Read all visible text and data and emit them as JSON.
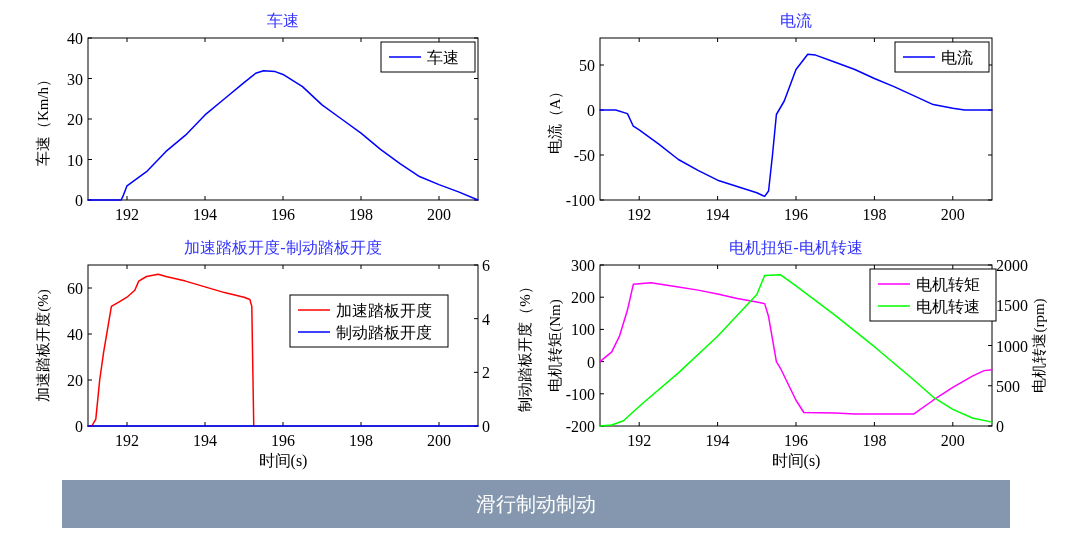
{
  "chart_data": [
    {
      "type": "line",
      "title": "车速",
      "ylabel": "车速（Km/h）",
      "xlim": [
        191,
        201
      ],
      "xticks": [
        192,
        194,
        196,
        198,
        200
      ],
      "ylim": [
        0,
        40
      ],
      "yticks": [
        0,
        10,
        20,
        30,
        40
      ],
      "legend": "top right",
      "series": [
        {
          "name": "车速",
          "color": "#0000ff",
          "x": [
            191,
            191.85,
            191.9,
            192,
            192.5,
            193,
            193.5,
            194,
            194.5,
            195,
            195.3,
            195.5,
            195.8,
            196,
            196.5,
            197,
            197.5,
            198,
            198.5,
            199,
            199.5,
            200,
            200.5,
            201
          ],
          "values": [
            0,
            0,
            1,
            3.5,
            7,
            12,
            16,
            21,
            25,
            29,
            31.3,
            31.9,
            31.7,
            31,
            28,
            23.5,
            20,
            16.5,
            12.5,
            9,
            5.8,
            3.8,
            2,
            0
          ]
        }
      ]
    },
    {
      "type": "line",
      "title": "电流",
      "ylabel": "电流（A）",
      "xlim": [
        191,
        201
      ],
      "xticks": [
        192,
        194,
        196,
        198,
        200
      ],
      "ylim": [
        -100,
        80
      ],
      "yticks": [
        -100,
        -50,
        0,
        50
      ],
      "legend": "top right",
      "series": [
        {
          "name": "电流",
          "color": "#0000ff",
          "x": [
            191,
            191.4,
            191.7,
            191.85,
            192,
            192.5,
            193,
            193.5,
            194,
            194.5,
            195,
            195.2,
            195.3,
            195.4,
            195.5,
            195.7,
            196,
            196.3,
            196.5,
            197,
            197.5,
            198,
            198.5,
            199,
            199.5,
            200,
            200.3,
            201
          ],
          "values": [
            0,
            0,
            -4,
            -18,
            -22,
            -38,
            -55,
            -67,
            -78,
            -85,
            -92,
            -96,
            -90,
            -50,
            -5,
            10,
            45,
            62,
            61,
            53,
            45,
            35,
            26,
            16,
            6,
            2,
            0,
            0
          ]
        }
      ]
    },
    {
      "type": "line",
      "title": "加速踏板开度-制动踏板开度",
      "xlabel": "时间(s)",
      "ylabel": "加速踏板开度(%)",
      "y2label": "制动踏板开度（%）",
      "xlim": [
        191,
        201
      ],
      "xticks": [
        192,
        194,
        196,
        198,
        200
      ],
      "ylim": [
        0,
        70
      ],
      "yticks": [
        0,
        20,
        40,
        60
      ],
      "y2lim": [
        0,
        6
      ],
      "y2ticks": [
        0,
        2,
        4,
        6
      ],
      "legend": "right",
      "series": [
        {
          "name": "加速踏板开度",
          "color": "#ff0000",
          "x": [
            191,
            191.1,
            191.2,
            191.3,
            191.4,
            191.5,
            191.6,
            191.8,
            192,
            192.2,
            192.3,
            192.5,
            192.8,
            193,
            193.5,
            194,
            194.5,
            195,
            195.15,
            195.2,
            195.25
          ],
          "values": [
            0,
            0,
            3,
            20,
            32,
            42,
            52,
            54,
            56,
            59,
            63,
            65,
            66,
            65,
            63,
            60.5,
            58,
            56,
            55,
            52,
            0
          ]
        },
        {
          "name": "制动踏板开度",
          "color": "#0000ff",
          "axis": "y2",
          "x": [
            191,
            201
          ],
          "values": [
            0,
            0
          ]
        }
      ]
    },
    {
      "type": "line",
      "title": "电机扭矩-电机转速",
      "xlabel": "时间(s)",
      "ylabel": "电机转矩(Nm)",
      "y2label": "电机转速(rpm)",
      "xlim": [
        191,
        201
      ],
      "xticks": [
        192,
        194,
        196,
        198,
        200
      ],
      "ylim": [
        -200,
        300
      ],
      "yticks": [
        -200,
        -100,
        0,
        100,
        200,
        300
      ],
      "y2lim": [
        0,
        2000
      ],
      "y2ticks": [
        0,
        500,
        1000,
        1500,
        2000
      ],
      "legend": "top right",
      "annotations": [
        "滑行制动制动"
      ],
      "series": [
        {
          "name": "电机转矩",
          "color": "#ff00ff",
          "x": [
            191,
            191.3,
            191.5,
            191.7,
            191.85,
            192,
            192.3,
            193,
            193.5,
            194,
            194.5,
            195,
            195.2,
            195.3,
            195.5,
            195.6,
            196,
            196.2,
            197,
            197.5,
            199,
            199.5,
            200,
            200.5,
            200.8,
            201
          ],
          "values": [
            0,
            30,
            80,
            160,
            240,
            242,
            245,
            232,
            222,
            210,
            196,
            185,
            180,
            140,
            0,
            -20,
            -120,
            -158,
            -160,
            -163,
            -163,
            -120,
            -80,
            -45,
            -28,
            -25
          ]
        },
        {
          "name": "电机转速",
          "color": "#00ff00",
          "axis": "y2",
          "x": [
            191,
            191.3,
            191.6,
            191.8,
            192.1,
            193,
            194,
            195,
            195.2,
            195.6,
            196,
            197,
            198,
            199,
            199.5,
            200,
            200.5,
            201
          ],
          "values": [
            0,
            13,
            65,
            155,
            285,
            660,
            1115,
            1633,
            1870,
            1880,
            1740,
            1374,
            985,
            575,
            360,
            207,
            100,
            48
          ]
        }
      ]
    }
  ]
}
